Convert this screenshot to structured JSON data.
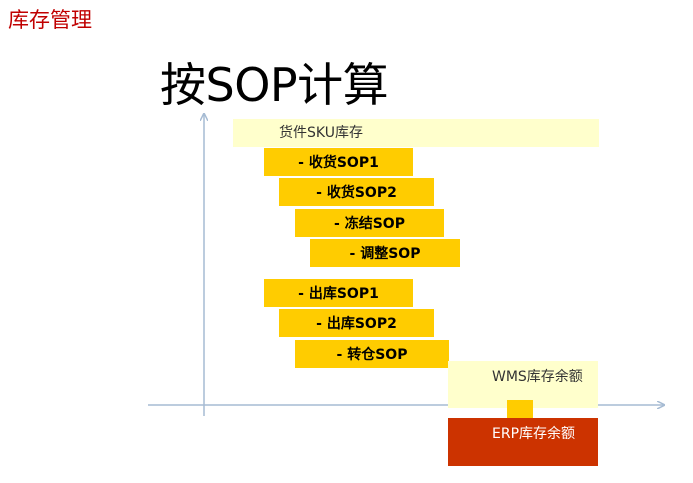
{
  "header": {
    "title": "库存管理"
  },
  "diagram": {
    "title": "按SOP计算",
    "stock_label": "货件SKU库存",
    "bars": [
      {
        "label": "- 收货SOP1"
      },
      {
        "label": "- 收货SOP2"
      },
      {
        "label": "- 冻结SOP"
      },
      {
        "label": "- 调整SOP"
      },
      {
        "label": "- 出库SOP1"
      },
      {
        "label": "- 出库SOP2"
      },
      {
        "label": "- 转仓SOP"
      }
    ],
    "wms_label": "WMS库存余额",
    "erp_label": "ERP库存余额",
    "colors": {
      "bar": "#ffcc00",
      "light": "#ffffcc",
      "erp": "#cc3300",
      "axis": "#a6bbd3",
      "header": "#c00000"
    }
  }
}
